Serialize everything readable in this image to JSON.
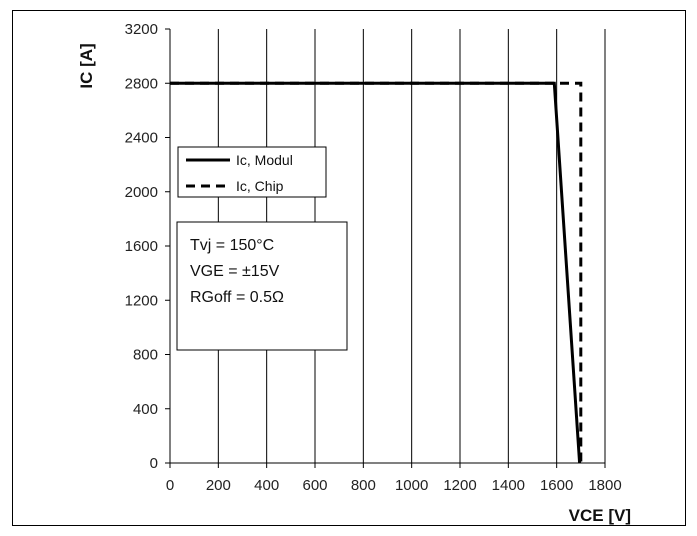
{
  "chart_data": {
    "type": "line",
    "title": "",
    "xlabel": "VCE [V]",
    "ylabel": "IC [A]",
    "xlim": [
      0,
      1800
    ],
    "ylim": [
      0,
      3200
    ],
    "x_ticks": [
      0,
      200,
      400,
      600,
      800,
      1000,
      1200,
      1400,
      1600,
      1800
    ],
    "y_ticks": [
      0,
      400,
      800,
      1200,
      1600,
      2000,
      2400,
      2800,
      3200
    ],
    "grid": "vertical",
    "legend_placement": "middle-left",
    "series": [
      {
        "name": "Ic, Modul",
        "style": "solid",
        "color": "#000000",
        "points": [
          [
            0,
            2800
          ],
          [
            1590,
            2800
          ],
          [
            1695,
            0
          ]
        ]
      },
      {
        "name": "Ic, Chip",
        "style": "dashed",
        "color": "#000000",
        "points": [
          [
            0,
            2800
          ],
          [
            1700,
            2800
          ],
          [
            1700,
            0
          ]
        ]
      }
    ],
    "annotation": {
      "lines": [
        "Tvj = 150°C",
        "VGE = ±15V",
        "RGoff = 0.5Ω"
      ]
    }
  }
}
